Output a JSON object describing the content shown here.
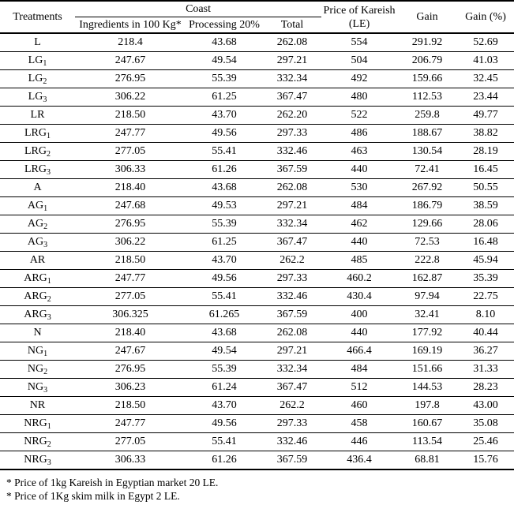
{
  "table": {
    "header": {
      "treatments": "Treatments",
      "coast_group": "Coast",
      "sub_headers": [
        "Ingredients in 100 Kg*",
        "Processing 20%",
        "Total"
      ],
      "price": "Price of Kareish (LE)",
      "gain": "Gain",
      "gain_pct": "Gain (%)"
    },
    "rows": [
      {
        "treatment": "L",
        "sub": "",
        "values": [
          "218.4",
          "43.68",
          "262.08",
          "554",
          "291.92",
          "52.69"
        ]
      },
      {
        "treatment": "LG",
        "sub": "1",
        "values": [
          "247.67",
          "49.54",
          "297.21",
          "504",
          "206.79",
          "41.03"
        ]
      },
      {
        "treatment": "LG",
        "sub": "2",
        "values": [
          "276.95",
          "55.39",
          "332.34",
          "492",
          "159.66",
          "32.45"
        ]
      },
      {
        "treatment": "LG",
        "sub": "3",
        "values": [
          "306.22",
          "61.25",
          "367.47",
          "480",
          "112.53",
          "23.44"
        ]
      },
      {
        "treatment": "LR",
        "sub": "",
        "values": [
          "218.50",
          "43.70",
          "262.20",
          "522",
          "259.8",
          "49.77"
        ]
      },
      {
        "treatment": "LRG",
        "sub": "1",
        "values": [
          "247.77",
          "49.56",
          "297.33",
          "486",
          "188.67",
          "38.82"
        ]
      },
      {
        "treatment": "LRG",
        "sub": "2",
        "values": [
          "277.05",
          "55.41",
          "332.46",
          "463",
          "130.54",
          "28.19"
        ]
      },
      {
        "treatment": "LRG",
        "sub": "3",
        "values": [
          "306.33",
          "61.26",
          "367.59",
          "440",
          "72.41",
          "16.45"
        ]
      },
      {
        "treatment": "A",
        "sub": "",
        "values": [
          "218.40",
          "43.68",
          "262.08",
          "530",
          "267.92",
          "50.55"
        ]
      },
      {
        "treatment": "AG",
        "sub": "1",
        "values": [
          "247.68",
          "49.53",
          "297.21",
          "484",
          "186.79",
          "38.59"
        ]
      },
      {
        "treatment": "AG",
        "sub": "2",
        "values": [
          "276.95",
          "55.39",
          "332.34",
          "462",
          "129.66",
          "28.06"
        ]
      },
      {
        "treatment": "AG",
        "sub": "3",
        "values": [
          "306.22",
          "61.25",
          "367.47",
          "440",
          "72.53",
          "16.48"
        ]
      },
      {
        "treatment": "AR",
        "sub": "",
        "values": [
          "218.50",
          "43.70",
          "262.2",
          "485",
          "222.8",
          "45.94"
        ]
      },
      {
        "treatment": "ARG",
        "sub": "1",
        "values": [
          "247.77",
          "49.56",
          "297.33",
          "460.2",
          "162.87",
          "35.39"
        ]
      },
      {
        "treatment": "ARG",
        "sub": "2",
        "values": [
          "277.05",
          "55.41",
          "332.46",
          "430.4",
          "97.94",
          "22.75"
        ]
      },
      {
        "treatment": "ARG",
        "sub": "3",
        "values": [
          "306.325",
          "61.265",
          "367.59",
          "400",
          "32.41",
          "8.10"
        ]
      },
      {
        "treatment": "N",
        "sub": "",
        "values": [
          "218.40",
          "43.68",
          "262.08",
          "440",
          "177.92",
          "40.44"
        ]
      },
      {
        "treatment": "NG",
        "sub": "1",
        "values": [
          "247.67",
          "49.54",
          "297.21",
          "466.4",
          "169.19",
          "36.27"
        ]
      },
      {
        "treatment": "NG",
        "sub": "2",
        "values": [
          "276.95",
          "55.39",
          "332.34",
          "484",
          "151.66",
          "31.33"
        ]
      },
      {
        "treatment": "NG",
        "sub": "3",
        "values": [
          "306.23",
          "61.24",
          "367.47",
          "512",
          "144.53",
          "28.23"
        ]
      },
      {
        "treatment": "NR",
        "sub": "",
        "values": [
          "218.50",
          "43.70",
          "262.2",
          "460",
          "197.8",
          "43.00"
        ]
      },
      {
        "treatment": "NRG",
        "sub": "1",
        "values": [
          "247.77",
          "49.56",
          "297.33",
          "458",
          "160.67",
          "35.08"
        ]
      },
      {
        "treatment": "NRG",
        "sub": "2",
        "values": [
          "277.05",
          "55.41",
          "332.46",
          "446",
          "113.54",
          "25.46"
        ]
      },
      {
        "treatment": "NRG",
        "sub": "3",
        "values": [
          "306.33",
          "61.26",
          "367.59",
          "436.4",
          "68.81",
          "15.76"
        ]
      }
    ]
  },
  "footnotes": [
    "* Price of 1kg Kareish in Egyptian market 20 LE.",
    "* Price of 1Kg skim milk in Egypt 2 LE."
  ],
  "colors": {
    "text": "#000000",
    "background": "#ffffff",
    "border": "#000000"
  }
}
